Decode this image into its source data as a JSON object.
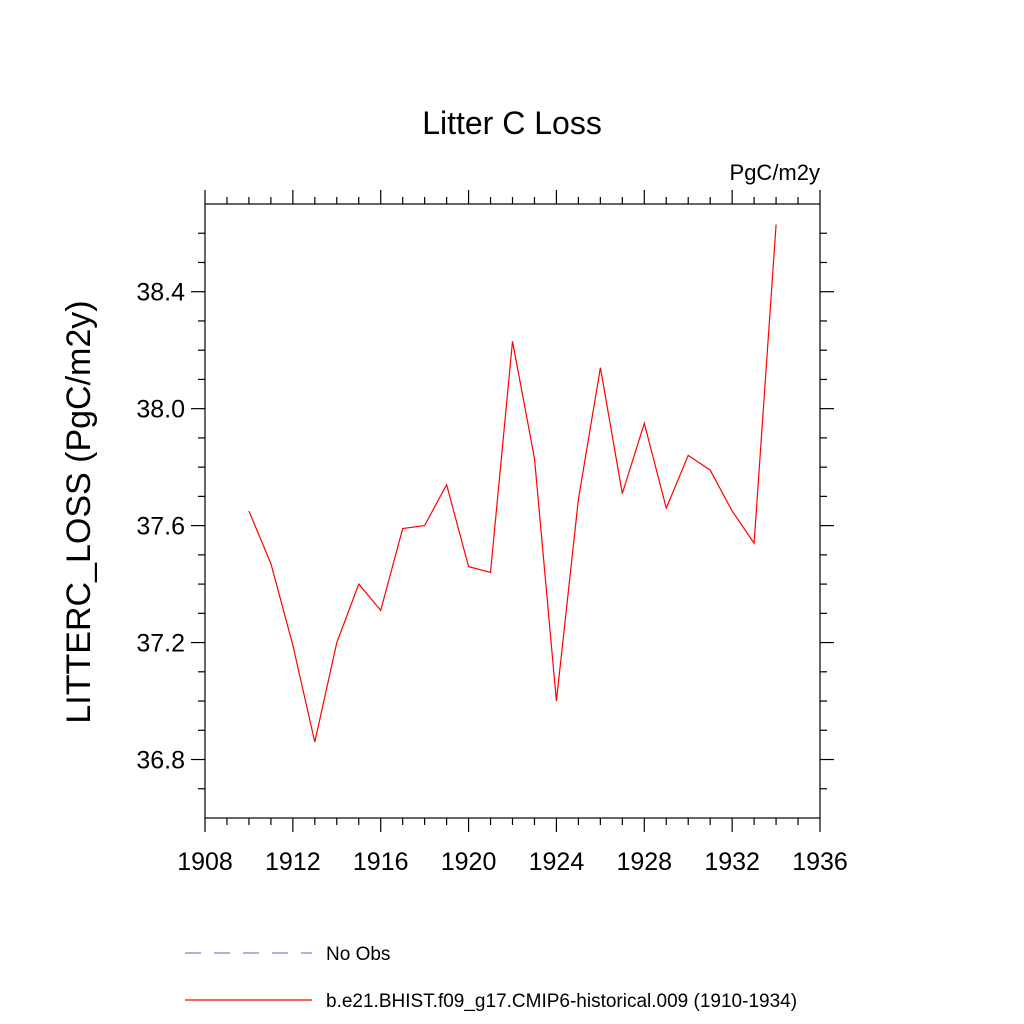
{
  "chart_data": {
    "type": "line",
    "title": "Litter C Loss",
    "units_label": "PgC/m2y",
    "xlabel": "",
    "ylabel": "LITTERC_LOSS  (PgC/m2y)",
    "xlim": [
      1908,
      1936
    ],
    "ylim": [
      36.6,
      38.7
    ],
    "xticks": [
      1908,
      1912,
      1916,
      1920,
      1924,
      1928,
      1932,
      1936
    ],
    "xtick_labels": [
      "1908",
      "1912",
      "1916",
      "1920",
      "1924",
      "1928",
      "1932",
      "1936"
    ],
    "yticks": [
      36.8,
      37.2,
      37.6,
      38.0,
      38.4
    ],
    "ytick_labels": [
      "36.8",
      "37.2",
      "37.6",
      "38.0",
      "38.4"
    ],
    "grid": false,
    "legend_position": "bottom",
    "series": [
      {
        "name": "b.e21.BHIST.f09_g17.CMIP6-historical.009 (1910-1934)",
        "color": "#ff0000",
        "style": "solid",
        "x": [
          1910,
          1911,
          1912,
          1913,
          1914,
          1915,
          1916,
          1917,
          1918,
          1919,
          1920,
          1921,
          1922,
          1923,
          1924,
          1925,
          1926,
          1927,
          1928,
          1929,
          1930,
          1931,
          1932,
          1933,
          1934
        ],
        "y": [
          37.65,
          37.47,
          37.19,
          36.86,
          37.2,
          37.4,
          37.31,
          37.59,
          37.6,
          37.74,
          37.46,
          37.44,
          38.23,
          37.83,
          37.0,
          37.69,
          38.14,
          37.71,
          37.95,
          37.66,
          37.84,
          37.79,
          37.65,
          37.54,
          38.63
        ]
      }
    ],
    "legend": [
      {
        "label": "No Obs",
        "color": "#8a7fc0",
        "style": "dashed"
      },
      {
        "label": "b.e21.BHIST.f09_g17.CMIP6-historical.009 (1910-1934)",
        "color": "#ff0000",
        "style": "solid"
      }
    ]
  }
}
